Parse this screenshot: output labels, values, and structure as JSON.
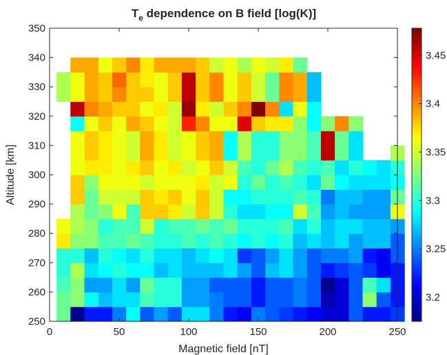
{
  "chart_data": {
    "type": "heatmap",
    "title": "T",
    "title_subscript": "e",
    "title_rest": " dependence on B field [log(K)]",
    "xlabel": "Magnetic field [nT]",
    "ylabel": "Altitude [km]",
    "xlim": [
      0,
      250
    ],
    "ylim": [
      250,
      350
    ],
    "x_ticks": [
      0,
      50,
      100,
      150,
      200,
      250
    ],
    "y_ticks": [
      250,
      260,
      270,
      280,
      290,
      300,
      310,
      320,
      330,
      340,
      350
    ],
    "x_bin_start": 5,
    "x_bin_width": 10,
    "y_bin_start": 250,
    "y_bin_width": 10,
    "row_subdivisions": 2,
    "rows_from_bottom": [
      [
        3.32,
        3.18,
        3.22,
        3.22,
        3.25,
        3.29,
        3.24,
        3.26,
        3.24,
        3.28,
        3.28,
        3.25,
        3.22,
        3.21,
        3.25,
        3.24,
        3.23,
        3.22,
        3.21,
        3.2,
        3.2,
        3.24,
        3.22,
        3.22,
        3.23
      ],
      [
        3.32,
        3.33,
        3.29,
        3.27,
        3.28,
        3.28,
        3.31,
        3.3,
        3.3,
        3.26,
        3.26,
        3.25,
        3.24,
        3.24,
        3.22,
        3.24,
        3.24,
        3.25,
        3.24,
        3.19,
        3.2,
        3.24,
        3.33,
        3.24,
        3.22
      ],
      [
        3.31,
        3.33,
        3.26,
        3.26,
        3.28,
        3.26,
        3.32,
        3.3,
        3.3,
        3.26,
        3.26,
        3.24,
        3.24,
        3.24,
        3.22,
        3.24,
        3.24,
        3.25,
        3.24,
        3.18,
        3.2,
        3.24,
        3.31,
        3.28,
        3.22
      ],
      [
        3.3,
        3.34,
        3.28,
        3.29,
        3.3,
        3.29,
        3.29,
        3.27,
        3.28,
        3.27,
        3.27,
        3.27,
        3.28,
        3.26,
        3.24,
        3.27,
        3.28,
        3.26,
        3.24,
        3.22,
        3.23,
        3.24,
        3.23,
        3.21,
        3.22
      ],
      [
        3.3,
        3.3,
        3.27,
        3.3,
        3.29,
        3.28,
        3.3,
        3.28,
        3.28,
        3.27,
        3.28,
        3.29,
        3.28,
        3.23,
        3.24,
        3.26,
        3.28,
        3.26,
        3.24,
        3.25,
        3.25,
        3.26,
        3.22,
        3.21,
        3.24
      ],
      [
        3.37,
        3.33,
        3.33,
        3.31,
        3.31,
        3.32,
        3.31,
        3.3,
        3.3,
        3.31,
        3.3,
        3.31,
        3.3,
        3.29,
        3.3,
        3.29,
        3.3,
        3.27,
        3.28,
        3.27,
        3.28,
        3.26,
        3.27,
        3.27,
        3.24
      ],
      [
        3.36,
        3.34,
        3.33,
        3.3,
        3.31,
        3.31,
        3.35,
        3.3,
        3.31,
        3.31,
        3.32,
        3.31,
        3.32,
        3.3,
        3.3,
        3.3,
        3.31,
        3.28,
        3.3,
        3.27,
        3.28,
        3.28,
        3.27,
        3.27,
        3.26
      ],
      [
        null,
        3.34,
        3.32,
        3.33,
        3.36,
        3.31,
        3.38,
        3.38,
        3.37,
        3.35,
        3.38,
        3.35,
        3.3,
        3.28,
        3.28,
        3.29,
        3.29,
        3.35,
        3.31,
        3.26,
        3.27,
        3.26,
        3.26,
        3.26,
        3.36
      ],
      [
        null,
        3.38,
        3.32,
        3.35,
        3.35,
        3.35,
        3.38,
        3.37,
        3.38,
        3.36,
        3.38,
        3.35,
        3.29,
        3.29,
        3.3,
        3.3,
        3.3,
        3.31,
        3.3,
        3.25,
        3.27,
        3.27,
        3.26,
        3.26,
        3.32
      ],
      [
        null,
        3.38,
        3.33,
        3.36,
        3.36,
        3.36,
        3.35,
        3.36,
        3.36,
        3.36,
        3.37,
        3.35,
        3.36,
        3.3,
        3.32,
        3.3,
        3.31,
        3.3,
        3.28,
        3.32,
        3.29,
        3.28,
        3.28,
        3.28,
        3.29
      ],
      [
        null,
        3.36,
        3.37,
        3.37,
        3.36,
        3.37,
        3.38,
        3.36,
        3.37,
        3.35,
        3.36,
        3.38,
        3.35,
        3.31,
        3.3,
        3.32,
        3.34,
        3.31,
        3.3,
        3.31,
        3.28,
        3.3,
        3.29,
        3.28,
        3.3
      ],
      [
        null,
        3.36,
        3.38,
        3.37,
        3.36,
        3.35,
        3.39,
        3.37,
        3.35,
        3.36,
        3.38,
        3.39,
        3.29,
        3.34,
        3.3,
        3.3,
        3.33,
        3.33,
        3.31,
        3.46,
        3.32,
        3.28,
        null,
        null,
        3.34
      ],
      [
        null,
        3.36,
        3.38,
        3.37,
        3.36,
        3.35,
        3.39,
        3.37,
        3.35,
        3.36,
        3.38,
        3.39,
        3.29,
        3.34,
        3.3,
        3.3,
        3.33,
        3.33,
        3.31,
        3.46,
        3.32,
        3.28,
        null,
        null,
        null
      ],
      [
        null,
        3.29,
        3.36,
        3.38,
        3.36,
        3.39,
        3.38,
        3.36,
        3.35,
        3.43,
        3.4,
        3.36,
        3.36,
        3.45,
        3.38,
        3.37,
        3.37,
        3.33,
        3.29,
        3.33,
        3.4,
        3.33,
        null,
        null,
        null
      ],
      [
        null,
        3.46,
        3.4,
        3.39,
        3.38,
        3.38,
        3.36,
        3.37,
        3.35,
        3.47,
        3.37,
        3.35,
        3.38,
        3.4,
        3.48,
        3.4,
        3.28,
        3.36,
        3.29,
        null,
        null,
        null,
        null,
        null,
        null
      ],
      [
        3.34,
        3.36,
        3.39,
        3.38,
        3.4,
        3.38,
        3.38,
        3.36,
        3.38,
        3.46,
        3.38,
        3.4,
        3.36,
        3.38,
        3.35,
        3.32,
        3.4,
        3.39,
        3.27,
        null,
        null,
        null,
        null,
        null,
        null
      ],
      [
        3.34,
        3.36,
        3.39,
        3.38,
        3.41,
        3.38,
        3.37,
        3.36,
        3.38,
        3.46,
        3.38,
        3.4,
        3.36,
        3.38,
        3.35,
        3.32,
        3.4,
        3.39,
        3.27,
        null,
        null,
        null,
        null,
        null,
        null
      ],
      [
        null,
        3.39,
        3.39,
        3.36,
        3.38,
        3.4,
        3.37,
        3.39,
        3.39,
        3.39,
        3.38,
        3.35,
        3.36,
        3.34,
        3.36,
        3.35,
        3.37,
        3.32,
        null,
        null,
        null,
        null,
        null,
        null,
        null
      ]
    ],
    "colorbar": {
      "min": 3.175,
      "max": 3.478,
      "ticks": [
        3.2,
        3.25,
        3.3,
        3.35,
        3.4,
        3.45
      ],
      "colormap": "jet"
    }
  }
}
